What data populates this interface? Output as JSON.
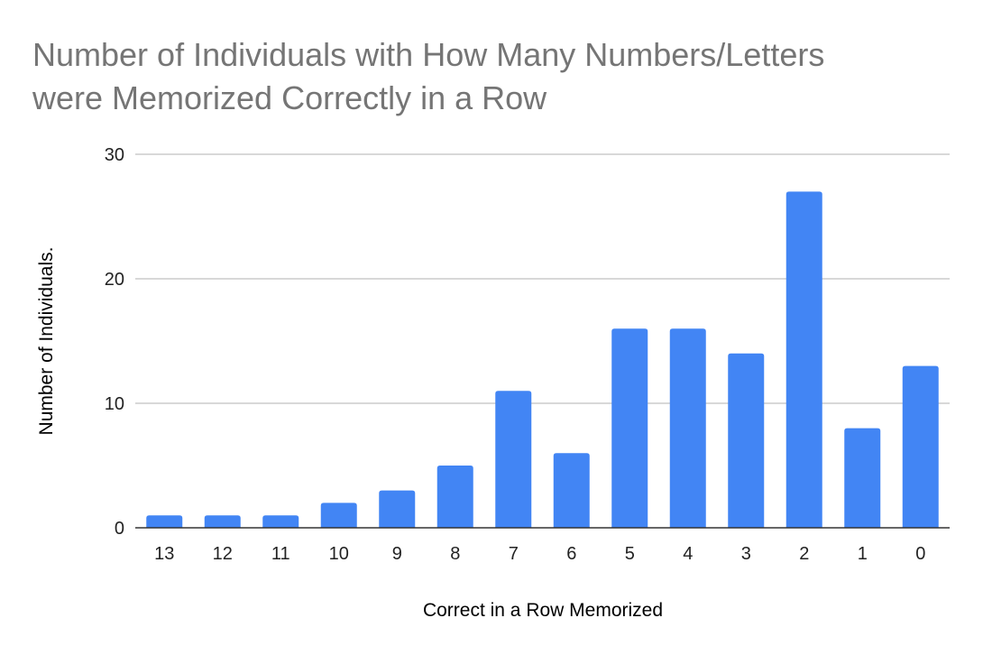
{
  "chart_data": {
    "type": "bar",
    "title_lines": [
      "Number of Individuals with How Many Numbers/Letters",
      "were Memorized Correctly in a Row"
    ],
    "xlabel": "Correct in a Row Memorized",
    "ylabel": "Number of Individuals.",
    "categories": [
      "13",
      "12",
      "11",
      "10",
      "9",
      "8",
      "7",
      "6",
      "5",
      "4",
      "3",
      "2",
      "1",
      "0"
    ],
    "values": [
      1,
      1,
      1,
      2,
      3,
      5,
      11,
      6,
      16,
      16,
      14,
      27,
      8,
      13
    ],
    "ylim": [
      0,
      30
    ],
    "yticks": [
      0,
      10,
      20,
      30
    ],
    "grid": true,
    "legend": "none",
    "bar_color": "#4285f4"
  }
}
